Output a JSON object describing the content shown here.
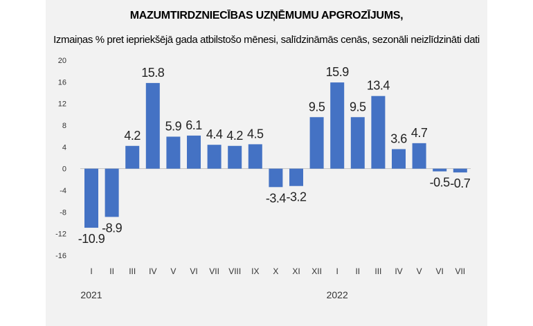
{
  "chart_data": {
    "type": "bar",
    "title": "MAZUMTIRDZNIECĪBAS UZŅĒMUMU APGROZĪJUMS,",
    "subtitle": "Izmaiņas % pret iepriekšējā gada atbilstošo mēnesi, salīdzināmās cenās, sezonāli neizlīdzināti dati",
    "categories": [
      "I",
      "II",
      "III",
      "IV",
      "V",
      "VI",
      "VII",
      "VIII",
      "IX",
      "X",
      "XI",
      "XII",
      "I",
      "II",
      "III",
      "IV",
      "V",
      "VI",
      "VII"
    ],
    "values": [
      -10.9,
      -8.9,
      4.2,
      15.8,
      5.9,
      6.1,
      4.4,
      4.2,
      4.5,
      -3.4,
      -3.2,
      9.5,
      15.9,
      9.5,
      13.4,
      3.6,
      4.7,
      -0.5,
      -0.7
    ],
    "data_labels": [
      "-10.9",
      "-8.9",
      "4.2",
      "15.8",
      "5.9",
      "6.1",
      "4.4",
      "4.2",
      "4.5",
      "-3.4",
      "-3.2",
      "9.5",
      "15.9",
      "9.5",
      "13.4",
      "3.6",
      "4.7",
      "-0.5",
      "-0.7"
    ],
    "year_groups": [
      {
        "label": "2021",
        "start_index": 0
      },
      {
        "label": "2022",
        "start_index": 12
      }
    ],
    "ylim": [
      -16,
      20
    ],
    "yticks": [
      20,
      16,
      12,
      8,
      4,
      0,
      -4,
      -8,
      -12,
      -16
    ],
    "grid": false,
    "legend": "none",
    "bar_color": "#4472c4"
  }
}
